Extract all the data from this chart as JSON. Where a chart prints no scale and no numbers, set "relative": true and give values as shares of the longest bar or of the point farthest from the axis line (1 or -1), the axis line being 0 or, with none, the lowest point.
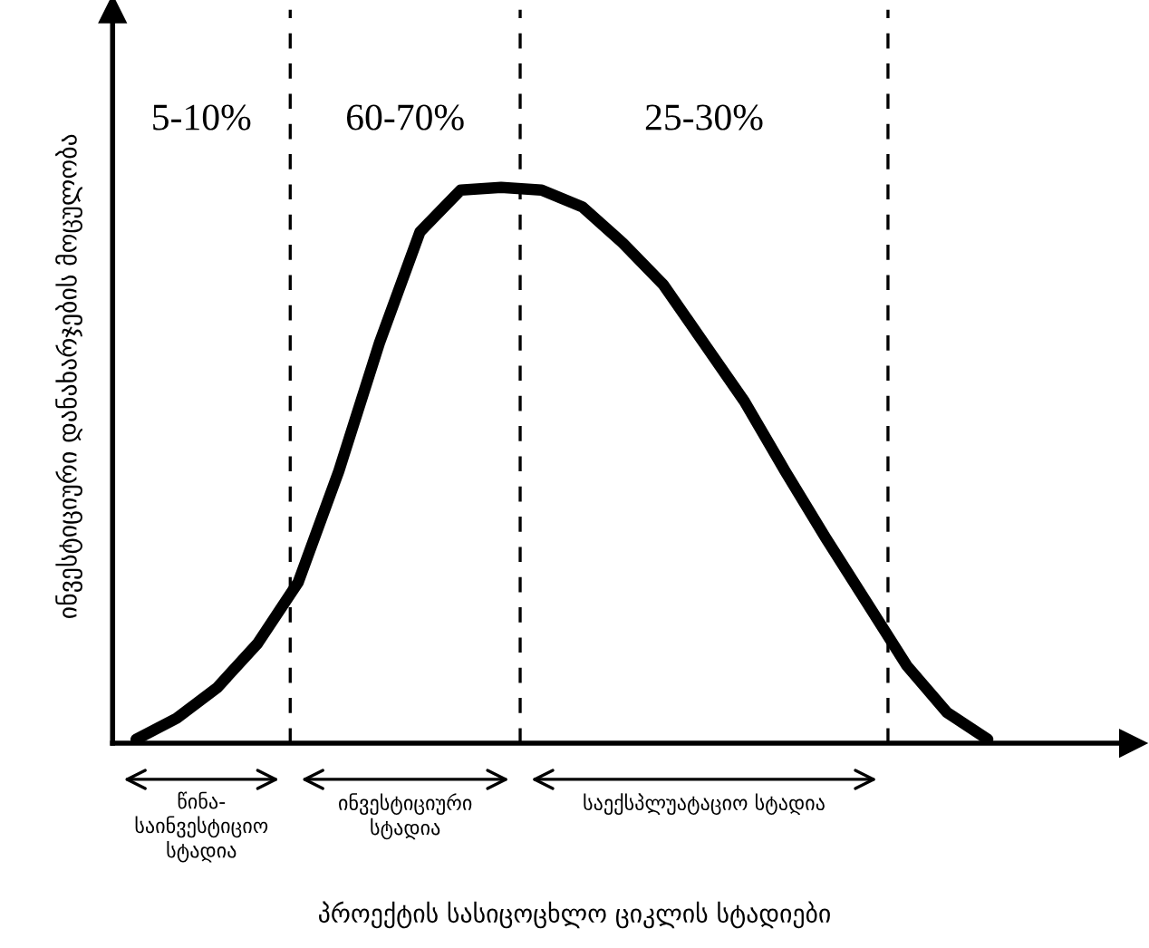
{
  "chart_data": {
    "type": "line",
    "relative": true,
    "ylabel": "ინვესტიციური დანახარჯების მოცულობა",
    "categories": [
      null,
      null,
      null,
      null,
      null,
      null,
      null,
      null,
      null,
      null,
      null,
      null,
      null,
      null,
      null,
      null,
      null,
      null,
      null,
      null,
      null,
      null
    ],
    "series": [
      {
        "color": "#000000",
        "values": [
          0.007,
          0.045,
          0.1,
          0.18,
          0.29,
          0.49,
          0.72,
          0.92,
          0.995,
          1.0,
          0.995,
          0.965,
          0.9,
          0.825,
          0.72,
          0.615,
          0.49,
          0.37,
          0.255,
          0.14,
          0.055,
          0.007
        ]
      }
    ],
    "annotations": [
      "5-10%",
      "60-70%",
      "25-30%",
      "წინა-\nსაინვესტიციო\nსტადია",
      "ინვესტიციური\nსტადია",
      "საექსპლუატაციო სტადია",
      "პროექტის სასიცოცხლო ციკლის სტადიები"
    ]
  }
}
